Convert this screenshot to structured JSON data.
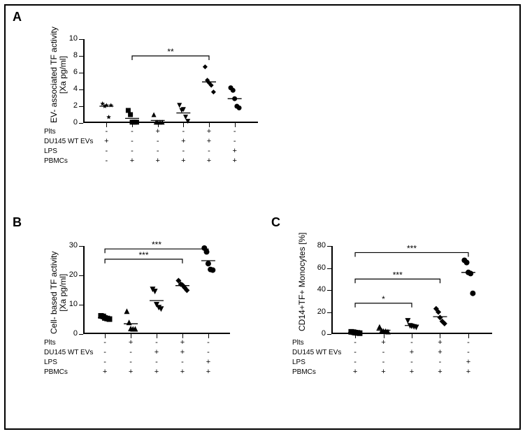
{
  "colors": {
    "fg": "#000000",
    "bg": "#ffffff",
    "marker_fill": "#000000"
  },
  "typography": {
    "panel_label_fontsize": 18,
    "axis_label_fontsize": 12,
    "tick_label_fontsize": 11,
    "row_label_fontsize": 10,
    "sig_fontsize": 12
  },
  "row_labels": [
    "Plts",
    "DU145 WT EVs",
    "LPS",
    "PBMCs"
  ],
  "panelA": {
    "label": "A",
    "ylabel": "EV- associated TF activity\n[Xa pg/ml]",
    "ylim": [
      0,
      10
    ],
    "ytick_step": 2,
    "yticks": [
      0,
      2,
      4,
      6,
      8,
      10
    ],
    "n_groups": 6,
    "marker_size": 7,
    "median_halfwidth": 10,
    "rows": [
      [
        "-",
        "-",
        "+",
        "-",
        "+",
        "-"
      ],
      [
        "+",
        "-",
        "-",
        "+",
        "+",
        "-"
      ],
      [
        "-",
        "-",
        "-",
        "-",
        "-",
        "+"
      ],
      [
        "-",
        "+",
        "+",
        "+",
        "+",
        "+"
      ]
    ],
    "groups": [
      {
        "marker": "star",
        "points": [
          2.3,
          2.0,
          2.1,
          0.7,
          2.1
        ],
        "median": 2.0
      },
      {
        "marker": "square",
        "points": [
          1.5,
          1.0,
          0.1,
          0.1,
          0.1
        ],
        "median": 0.55
      },
      {
        "marker": "triangle-up",
        "points": [
          1.0,
          0.1,
          0.1,
          0.1,
          0.1
        ],
        "median": 0.3
      },
      {
        "marker": "triangle-down",
        "points": [
          2.1,
          1.5,
          1.6,
          0.7,
          0.2
        ],
        "median": 1.2
      },
      {
        "marker": "diamond",
        "points": [
          6.7,
          5.1,
          4.8,
          4.5,
          3.7
        ],
        "median": 4.9
      },
      {
        "marker": "circle",
        "points": [
          4.2,
          3.9,
          2.9,
          2.0,
          1.8
        ],
        "median": 2.9
      }
    ],
    "sig": [
      {
        "from": 1,
        "to": 4,
        "y": 8.0,
        "label": "**"
      }
    ]
  },
  "panelB": {
    "label": "B",
    "ylabel": "Cell- based TF activity\n[Xa pg/ml]",
    "ylim": [
      0,
      30
    ],
    "ytick_step": 10,
    "yticks": [
      0,
      10,
      20,
      30
    ],
    "n_groups": 5,
    "marker_size": 8,
    "median_halfwidth": 10,
    "rows": [
      [
        "-",
        "+",
        "-",
        "+",
        "-"
      ],
      [
        "-",
        "-",
        "+",
        "+",
        "-"
      ],
      [
        "-",
        "-",
        "-",
        "-",
        "+"
      ],
      [
        "+",
        "+",
        "+",
        "+",
        "+"
      ]
    ],
    "groups": [
      {
        "marker": "square",
        "points": [
          6.2,
          6.0,
          5.5,
          5.3,
          5.1
        ],
        "median": 5.6
      },
      {
        "marker": "triangle-up",
        "points": [
          7.8,
          4.0,
          1.9,
          1.8,
          1.8
        ],
        "median": 3.5
      },
      {
        "marker": "triangle-down",
        "points": [
          15.2,
          14.5,
          10.0,
          9.0,
          8.5
        ],
        "median": 11.4
      },
      {
        "marker": "diamond",
        "points": [
          18.2,
          17.0,
          16.7,
          15.8,
          14.9
        ],
        "median": 16.5
      },
      {
        "marker": "circle",
        "points": [
          29.3,
          28.0,
          24.0,
          22.0,
          21.8
        ],
        "median": 25.0
      }
    ],
    "sig": [
      {
        "from": 0,
        "to": 3,
        "y": 25.5,
        "label": "***"
      },
      {
        "from": 0,
        "to": 4,
        "y": 29.0,
        "label": "***"
      }
    ]
  },
  "panelC": {
    "label": "C",
    "ylabel": "CD14+TF+ Monocytes [%]",
    "ylim": [
      0,
      80
    ],
    "ytick_step": 20,
    "yticks": [
      0,
      20,
      40,
      60,
      80
    ],
    "n_groups": 5,
    "marker_size": 8,
    "median_halfwidth": 10,
    "rows": [
      [
        "-",
        "+",
        "-",
        "+",
        "-"
      ],
      [
        "-",
        "-",
        "+",
        "+",
        "-"
      ],
      [
        "-",
        "-",
        "-",
        "-",
        "+"
      ],
      [
        "+",
        "+",
        "+",
        "+",
        "+"
      ]
    ],
    "groups": [
      {
        "marker": "square",
        "points": [
          2.0,
          1.7,
          1.3,
          1.1,
          0.8
        ],
        "median": 1.4
      },
      {
        "marker": "triangle-up",
        "points": [
          6.5,
          3.1,
          2.8,
          2.7,
          2.2
        ],
        "median": 3.5
      },
      {
        "marker": "triangle-down",
        "points": [
          12.0,
          7.5,
          7.0,
          6.5,
          6.0
        ],
        "median": 7.8
      },
      {
        "marker": "diamond",
        "points": [
          23.0,
          20.0,
          15.0,
          11.5,
          9.5
        ],
        "median": 15.8
      },
      {
        "marker": "circle",
        "points": [
          67.0,
          65.0,
          56.0,
          55.0,
          37.0
        ],
        "median": 56.0
      }
    ],
    "sig": [
      {
        "from": 0,
        "to": 2,
        "y": 28.0,
        "label": "*"
      },
      {
        "from": 0,
        "to": 3,
        "y": 50.0,
        "label": "***"
      },
      {
        "from": 0,
        "to": 4,
        "y": 74.0,
        "label": "***"
      }
    ]
  }
}
